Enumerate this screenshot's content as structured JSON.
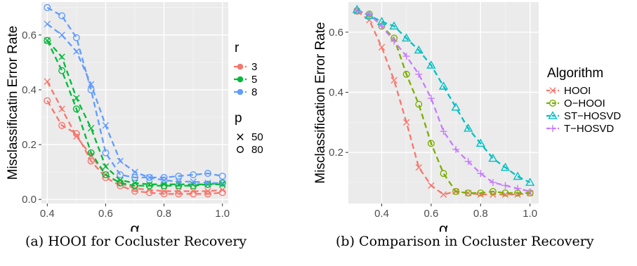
{
  "captions": {
    "a": "(a) HOOI for Cocluster Recovery",
    "b": "(b) Comparison in Cocluster Recovery"
  },
  "chart_data": [
    {
      "type": "line",
      "xlabel": "α",
      "ylabel": "Misclassificatin Error Rate",
      "xlim": [
        0.38,
        1.02
      ],
      "ylim": [
        -0.015,
        0.72
      ],
      "xticks": [
        0.4,
        0.6,
        0.8,
        1.0
      ],
      "xtick_labels": [
        "0.4",
        "0.6",
        "0.8",
        "1.0"
      ],
      "yticks": [
        0.0,
        0.2,
        0.4,
        0.6
      ],
      "ytick_labels": [
        "0.0",
        "0.2",
        "0.4",
        "0.6"
      ],
      "grid": true,
      "legend": [
        {
          "title": "r",
          "entries": [
            {
              "label": "3",
              "color": "#F8766D"
            },
            {
              "label": "5",
              "color": "#00BA38"
            },
            {
              "label": "8",
              "color": "#619CFF"
            }
          ]
        },
        {
          "title": "p",
          "entries": [
            {
              "label": "50",
              "shape": "cross"
            },
            {
              "label": "80",
              "shape": "circle"
            }
          ]
        }
      ],
      "x": [
        0.4,
        0.45,
        0.5,
        0.55,
        0.6,
        0.65,
        0.7,
        0.75,
        0.8,
        0.85,
        0.9,
        0.95,
        1.0
      ],
      "series": [
        {
          "r": "3",
          "p": "50",
          "color": "#F8766D",
          "marker": "cross",
          "values": [
            0.43,
            0.33,
            0.23,
            0.16,
            0.09,
            0.06,
            0.04,
            0.035,
            0.03,
            0.03,
            0.03,
            0.03,
            0.035
          ]
        },
        {
          "r": "3",
          "p": "80",
          "color": "#F8766D",
          "marker": "circle",
          "values": [
            0.36,
            0.27,
            0.24,
            0.14,
            0.08,
            0.05,
            0.03,
            0.025,
            0.02,
            0.02,
            0.02,
            0.02,
            0.025
          ]
        },
        {
          "r": "5",
          "p": "50",
          "color": "#00BA38",
          "marker": "cross",
          "values": [
            0.58,
            0.52,
            0.37,
            0.26,
            0.12,
            0.07,
            0.06,
            0.055,
            0.055,
            0.055,
            0.055,
            0.055,
            0.055
          ]
        },
        {
          "r": "5",
          "p": "80",
          "color": "#00BA38",
          "marker": "circle",
          "values": [
            0.58,
            0.47,
            0.33,
            0.17,
            0.09,
            0.06,
            0.05,
            0.05,
            0.05,
            0.05,
            0.05,
            0.055,
            0.06
          ]
        },
        {
          "r": "8",
          "p": "50",
          "color": "#619CFF",
          "marker": "cross",
          "values": [
            0.64,
            0.6,
            0.54,
            0.42,
            0.27,
            0.14,
            0.1,
            0.08,
            0.07,
            0.065,
            0.065,
            0.06,
            0.06
          ]
        },
        {
          "r": "8",
          "p": "80",
          "color": "#619CFF",
          "marker": "circle",
          "values": [
            0.7,
            0.67,
            0.59,
            0.4,
            0.17,
            0.09,
            0.08,
            0.08,
            0.08,
            0.085,
            0.09,
            0.095,
            0.085
          ]
        }
      ]
    },
    {
      "type": "line",
      "xlabel": "α",
      "ylabel": "Misclassification Error Rate",
      "xlim": [
        0.265,
        1.035
      ],
      "ylim": [
        0.03,
        0.7
      ],
      "xticks": [
        0.4,
        0.6,
        0.8,
        1.0
      ],
      "xtick_labels": [
        "0.4",
        "0.6",
        "0.8",
        "1.0"
      ],
      "yticks": [
        0.2,
        0.4,
        0.6
      ],
      "ytick_labels": [
        "0.2",
        "0.4",
        "0.6"
      ],
      "grid": true,
      "legend": [
        {
          "title": "Algorithm",
          "entries": [
            {
              "label": "HOOI",
              "color": "#F8766D",
              "shape": "cross"
            },
            {
              "label": "O−HOOI",
              "color": "#7CAE00",
              "shape": "circle"
            },
            {
              "label": "ST−HOSVD",
              "color": "#00BFC4",
              "shape": "triangle"
            },
            {
              "label": "T−HOSVD",
              "color": "#C77CFF",
              "shape": "plus"
            }
          ]
        }
      ],
      "x": [
        0.3,
        0.35,
        0.4,
        0.45,
        0.5,
        0.55,
        0.6,
        0.65,
        0.7,
        0.75,
        0.8,
        0.85,
        0.9,
        0.95,
        1.0
      ],
      "series": [
        {
          "name": "HOOI",
          "color": "#F8766D",
          "marker": "cross",
          "values": [
            0.67,
            0.64,
            0.55,
            0.44,
            0.3,
            0.15,
            0.09,
            0.06,
            0.07,
            0.065,
            0.06,
            0.06,
            0.06,
            0.06,
            0.065
          ]
        },
        {
          "name": "O−HOOI",
          "color": "#7CAE00",
          "marker": "circle",
          "values": [
            0.67,
            0.66,
            0.62,
            0.58,
            0.46,
            0.36,
            0.23,
            0.13,
            0.07,
            0.065,
            0.065,
            0.07,
            0.065,
            0.065,
            0.065
          ]
        },
        {
          "name": "ST−HOSVD",
          "color": "#00BFC4",
          "marker": "triangle",
          "values": [
            0.675,
            0.655,
            0.635,
            0.62,
            0.58,
            0.54,
            0.49,
            0.42,
            0.35,
            0.28,
            0.23,
            0.18,
            0.15,
            0.12,
            0.1
          ]
        },
        {
          "name": "T−HOSVD",
          "color": "#C77CFF",
          "marker": "plus",
          "values": [
            0.67,
            0.66,
            0.62,
            0.57,
            0.52,
            0.46,
            0.38,
            0.27,
            0.21,
            0.17,
            0.13,
            0.1,
            0.09,
            0.08,
            0.07
          ]
        }
      ]
    }
  ]
}
